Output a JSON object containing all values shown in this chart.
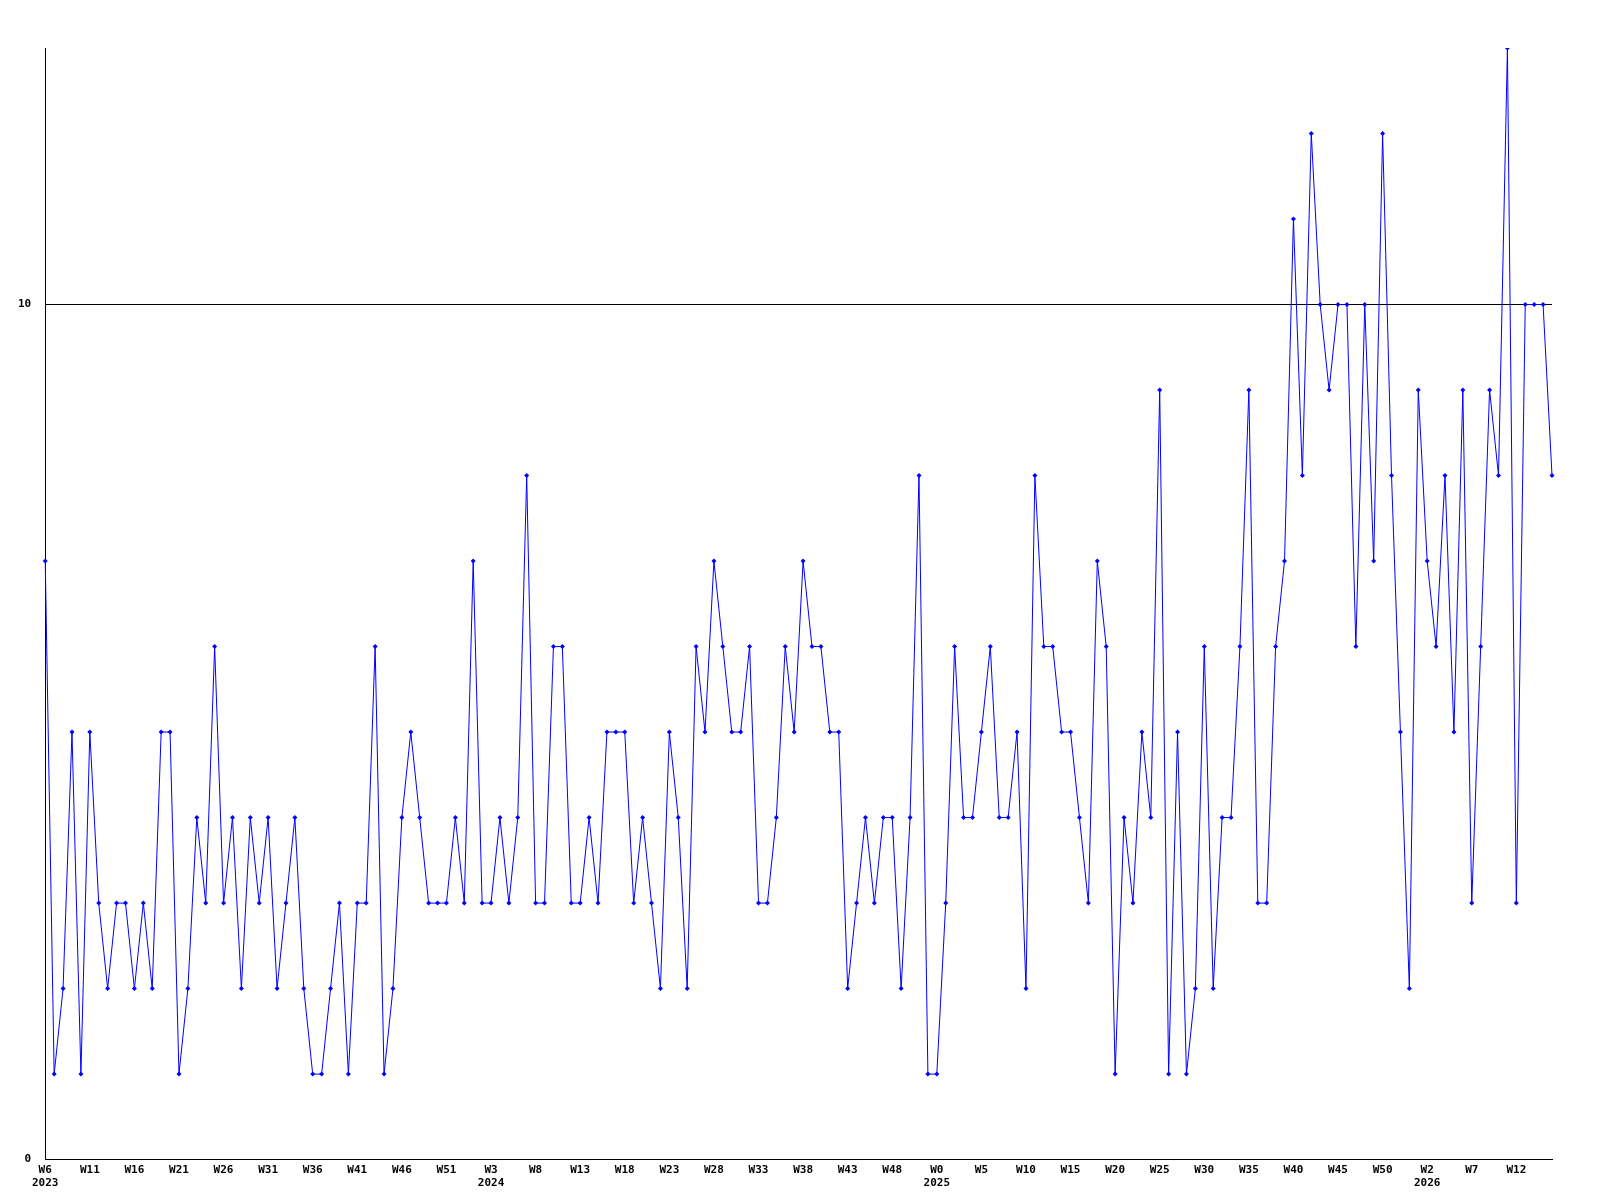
{
  "chart_data": {
    "type": "line",
    "categories": [
      "W6\n2023",
      null,
      null,
      null,
      null,
      "W11",
      null,
      null,
      null,
      null,
      "W16",
      null,
      null,
      null,
      null,
      "W21",
      null,
      null,
      null,
      null,
      "W26",
      null,
      null,
      null,
      null,
      "W31",
      null,
      null,
      null,
      null,
      "W36",
      null,
      null,
      null,
      null,
      "W41",
      null,
      null,
      null,
      null,
      "W46",
      null,
      null,
      null,
      null,
      "W51",
      null,
      null,
      null,
      null,
      "W3\n2024",
      null,
      null,
      null,
      null,
      "W8",
      null,
      null,
      null,
      null,
      "W13",
      null,
      null,
      null,
      null,
      "W18",
      null,
      null,
      null,
      null,
      "W23",
      null,
      null,
      null,
      null,
      "W28",
      null,
      null,
      null,
      null,
      "W33",
      null,
      null,
      null,
      null,
      "W38",
      null,
      null,
      null,
      null,
      "W43",
      null,
      null,
      null,
      null,
      "W48",
      null,
      null,
      null,
      null,
      "W0\n2025",
      null,
      null,
      null,
      null,
      "W5",
      null,
      null,
      null,
      null,
      "W10",
      null,
      null,
      null,
      null,
      "W15",
      null,
      null,
      null,
      null,
      "W20",
      null,
      null,
      null,
      null,
      "W25",
      null,
      null,
      null,
      null,
      "W30",
      null,
      null,
      null,
      null,
      "W35",
      null,
      null,
      null,
      null,
      "W40",
      null,
      null,
      null,
      null,
      "W45",
      null,
      null,
      null,
      null,
      "W50",
      null,
      null,
      null,
      null,
      "W2\n2026",
      null,
      null,
      null,
      null,
      "W7",
      null,
      null,
      null,
      null,
      "W12",
      null,
      null,
      null,
      null
    ],
    "series": [
      {
        "color": "#0000ff",
        "values": [
          7,
          1,
          2,
          5,
          1,
          5,
          3,
          2,
          3,
          3,
          2,
          3,
          2,
          5,
          5,
          1,
          2,
          4,
          3,
          6,
          3,
          4,
          2,
          4,
          3,
          4,
          2,
          3,
          4,
          2,
          1,
          1,
          2,
          3,
          1,
          3,
          3,
          6,
          1,
          2,
          4,
          5,
          4,
          3,
          3,
          3,
          4,
          3,
          7,
          3,
          3,
          4,
          3,
          4,
          8,
          3,
          3,
          6,
          6,
          3,
          3,
          4,
          3,
          5,
          5,
          5,
          3,
          4,
          3,
          2,
          5,
          4,
          2,
          6,
          5,
          7,
          6,
          5,
          5,
          6,
          3,
          3,
          4,
          6,
          5,
          7,
          6,
          6,
          5,
          5,
          2,
          3,
          4,
          3,
          4,
          4,
          2,
          4,
          8,
          1,
          1,
          3,
          6,
          4,
          4,
          5,
          6,
          4,
          4,
          5,
          2,
          8,
          6,
          6,
          5,
          5,
          4,
          3,
          7,
          6,
          1,
          4,
          3,
          5,
          4,
          9,
          1,
          5,
          1,
          2,
          6,
          2,
          4,
          4,
          6,
          9,
          3,
          3,
          6,
          7,
          11,
          8,
          12,
          10,
          9,
          10,
          10,
          6,
          10,
          7,
          12,
          8,
          5,
          2,
          9,
          7,
          6,
          8,
          5,
          9,
          3,
          6,
          9,
          8,
          13,
          3,
          10,
          10,
          10,
          8
        ]
      }
    ],
    "ylim": [
      0,
      13
    ],
    "yticks": [
      0,
      10
    ],
    "grid": "y",
    "legend": false,
    "marker": "diamond",
    "line_style": "solid"
  }
}
